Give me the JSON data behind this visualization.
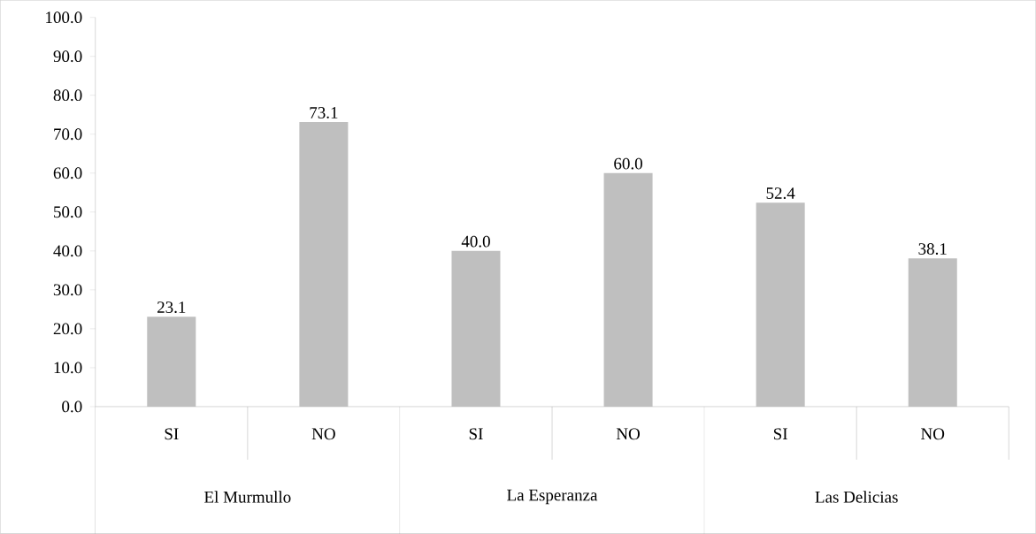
{
  "chart_data": {
    "type": "bar",
    "categories": [
      "SI",
      "NO",
      "SI",
      "NO",
      "SI",
      "NO"
    ],
    "values": [
      23.1,
      73.1,
      40.0,
      60.0,
      52.4,
      38.1
    ],
    "color": "#bfbfbf",
    "ylim": [
      0,
      100
    ],
    "yticks": [
      {
        "value": 0,
        "label": "0.0"
      },
      {
        "value": 10,
        "label": "10.0"
      },
      {
        "value": 20,
        "label": "20.0"
      },
      {
        "value": 30,
        "label": "30.0"
      },
      {
        "value": 40,
        "label": "40.0"
      },
      {
        "value": 50,
        "label": "50.0"
      },
      {
        "value": 60,
        "label": "60.0"
      },
      {
        "value": 70,
        "label": "70.0"
      },
      {
        "value": 80,
        "label": "80.0"
      },
      {
        "value": 90,
        "label": "90.0"
      },
      {
        "value": 100,
        "label": "100.0"
      }
    ],
    "value_labels": [
      "23.1",
      "73.1",
      "40.0",
      "60.0",
      "52.4",
      "38.1"
    ],
    "annotations": [
      "El Murmullo",
      "La Esperanza",
      "Las Delicias"
    ]
  }
}
